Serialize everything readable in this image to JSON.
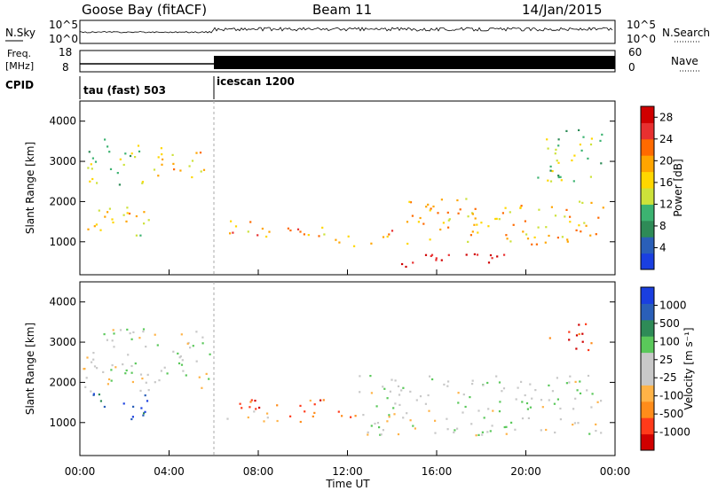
{
  "header": {
    "radar": "Goose Bay (fitACF)",
    "beam": "Beam 11",
    "date": "14/Jan/2015"
  },
  "noise_panel": {
    "left_label": "N.Sky",
    "left_ticks": [
      "10^5",
      "10^0"
    ],
    "right_label": "N.Search",
    "right_ticks": [
      "10^5",
      "10^0"
    ]
  },
  "freq_panel": {
    "left_label_line1": "Freq.",
    "left_label_line2": "[MHz]",
    "left_ticks": [
      "18",
      "8"
    ],
    "right_label": "Nave",
    "right_ticks": [
      "60",
      "0"
    ]
  },
  "cpid": {
    "label": "CPID",
    "segments": [
      {
        "name": "tau (fast) 503",
        "start_hour": 0,
        "end_hour": 6
      },
      {
        "name": "icescan 1200",
        "start_hour": 6,
        "end_hour": 24
      }
    ]
  },
  "colors": {
    "power": [
      "#1a3fe0",
      "#2a5fb8",
      "#2e8b57",
      "#3cb371",
      "#cde23a",
      "#ffd700",
      "#ffa500",
      "#ff6a00",
      "#e83030",
      "#d00000"
    ],
    "velocity": [
      "#d00000",
      "#ff3a1a",
      "#ff8c1a",
      "#ffb347",
      "#c8c8c8",
      "#c8c8c8",
      "#5ac85a",
      "#2e8b57",
      "#2a5fb8",
      "#1a3fe0"
    ]
  },
  "chart_data": [
    {
      "type": "heatmap",
      "name": "Power",
      "xlabel": "Time UT",
      "ylabel": "Slant Range [km]",
      "xlim": [
        0,
        24
      ],
      "ylim": [
        180,
        4500
      ],
      "xticks": [
        "00:00",
        "04:00",
        "08:00",
        "12:00",
        "16:00",
        "20:00",
        "00:00"
      ],
      "yticks": [
        1000,
        2000,
        3000,
        4000
      ],
      "colorbar_label": "Power [dB]",
      "colorbar_ticks": [
        4,
        8,
        12,
        16,
        20,
        24,
        28
      ],
      "colorbar_range": [
        0,
        30
      ],
      "features": [
        {
          "hours": [
            0.0,
            3.2
          ],
          "range_km": [
            1150,
            1950
          ],
          "level": 0.55
        },
        {
          "hours": [
            0.3,
            2.8
          ],
          "range_km": [
            2400,
            3600
          ],
          "level": 0.4
        },
        {
          "hours": [
            3.2,
            5.6
          ],
          "range_km": [
            2600,
            3500
          ],
          "level": 0.55
        },
        {
          "hours": [
            6.5,
            11.0
          ],
          "range_km": [
            1150,
            1550
          ],
          "level": 0.65
        },
        {
          "hours": [
            10.0,
            14.0
          ],
          "range_km": [
            900,
            1300
          ],
          "level": 0.65
        },
        {
          "hours": [
            14.5,
            23.5
          ],
          "range_km": [
            950,
            2100
          ],
          "level": 0.6
        },
        {
          "hours": [
            14.0,
            20.0
          ],
          "range_km": [
            400,
            750
          ],
          "level": 0.95
        },
        {
          "hours": [
            20.5,
            23.5
          ],
          "range_km": [
            2500,
            3800
          ],
          "level": 0.4
        }
      ]
    },
    {
      "type": "heatmap",
      "name": "Velocity",
      "xlabel": "Time UT",
      "ylabel": "Slant Range [km]",
      "xlim": [
        0,
        24
      ],
      "ylim": [
        180,
        4500
      ],
      "xticks": [
        "00:00",
        "04:00",
        "08:00",
        "12:00",
        "16:00",
        "20:00",
        "00:00"
      ],
      "yticks": [
        1000,
        2000,
        3000,
        4000
      ],
      "colorbar_label": "Velocity [m s⁻¹]",
      "colorbar_ticks": [
        "-1000",
        "-500",
        "-100",
        "-25",
        "25",
        "100",
        "500",
        "1000"
      ],
      "features": [
        {
          "hours": [
            0.5,
            3.0
          ],
          "range_km": [
            1100,
            1800
          ],
          "level": 0.9
        },
        {
          "hours": [
            0.0,
            5.8
          ],
          "range_km": [
            1800,
            3400
          ],
          "level": 0.5
        },
        {
          "hours": [
            6.5,
            12.5
          ],
          "range_km": [
            1000,
            1600
          ],
          "level": 0.25
        },
        {
          "hours": [
            12.5,
            23.5
          ],
          "range_km": [
            700,
            2200
          ],
          "level": 0.5
        },
        {
          "hours": [
            21.0,
            23.0
          ],
          "range_km": [
            2800,
            3500
          ],
          "level": 0.1
        }
      ]
    }
  ],
  "axis": {
    "x_title": "Time UT"
  }
}
